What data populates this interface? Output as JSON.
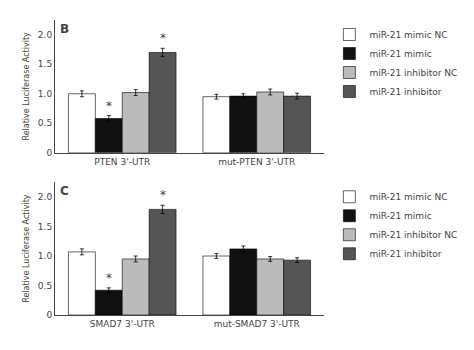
{
  "chart_data": [
    {
      "type": "bar",
      "title": "B",
      "categories": [
        "PTEN 3'-UTR",
        "mut-PTEN 3'-UTR"
      ],
      "series": [
        {
          "name": "miR-21 mimic NC",
          "color": "#ffffff",
          "values": [
            1.0,
            0.95
          ],
          "errors": [
            0.05,
            0.04
          ]
        },
        {
          "name": "miR-21 mimic",
          "color": "#111111",
          "values": [
            0.58,
            0.96
          ],
          "errors": [
            0.05,
            0.04
          ]
        },
        {
          "name": "miR-21 inhibitor NC",
          "color": "#bbbbbb",
          "values": [
            1.02,
            1.03
          ],
          "errors": [
            0.05,
            0.05
          ]
        },
        {
          "name": "miR-21 inhibitor",
          "color": "#555555",
          "values": [
            1.7,
            0.96
          ],
          "errors": [
            0.07,
            0.05
          ]
        }
      ],
      "ylabel": "Relative Luciferase Activity",
      "ylim": [
        0,
        2.25
      ],
      "yticks": [
        0,
        0.5,
        {
          "value": 1.0,
          "label": "1.0"
        },
        1.5,
        {
          "value": 2.0,
          "label": "2.0"
        }
      ],
      "grid": false,
      "legend": "right",
      "annotations": [
        {
          "text": "*",
          "category": "PTEN 3'-UTR",
          "series": "miR-21 mimic"
        },
        {
          "text": "*",
          "category": "PTEN 3'-UTR",
          "series": "miR-21 inhibitor"
        }
      ]
    },
    {
      "type": "bar",
      "title": "C",
      "categories": [
        "SMAD7 3'-UTR",
        "mut-SMAD7 3'-UTR"
      ],
      "series": [
        {
          "name": "miR-21 mimic NC",
          "color": "#ffffff",
          "values": [
            1.07,
            1.0
          ],
          "errors": [
            0.05,
            0.04
          ]
        },
        {
          "name": "miR-21 mimic",
          "color": "#111111",
          "values": [
            0.42,
            1.12
          ],
          "errors": [
            0.04,
            0.05
          ]
        },
        {
          "name": "miR-21 inhibitor NC",
          "color": "#bbbbbb",
          "values": [
            0.95,
            0.95
          ],
          "errors": [
            0.05,
            0.04
          ]
        },
        {
          "name": "miR-21 inhibitor",
          "color": "#555555",
          "values": [
            1.79,
            0.93
          ],
          "errors": [
            0.07,
            0.04
          ]
        }
      ],
      "ylabel": "Relative Luciferase Activity",
      "ylim": [
        0,
        2.25
      ],
      "yticks": [
        0,
        0.5,
        {
          "value": 1.0,
          "label": "1.0"
        },
        1.5,
        {
          "value": 2.0,
          "label": "2.0"
        }
      ],
      "grid": false,
      "legend": "right",
      "annotations": [
        {
          "text": "*",
          "category": "SMAD7 3'-UTR",
          "series": "miR-21 mimic"
        },
        {
          "text": "*",
          "category": "SMAD7 3'-UTR",
          "series": "miR-21 inhibitor"
        }
      ]
    }
  ]
}
